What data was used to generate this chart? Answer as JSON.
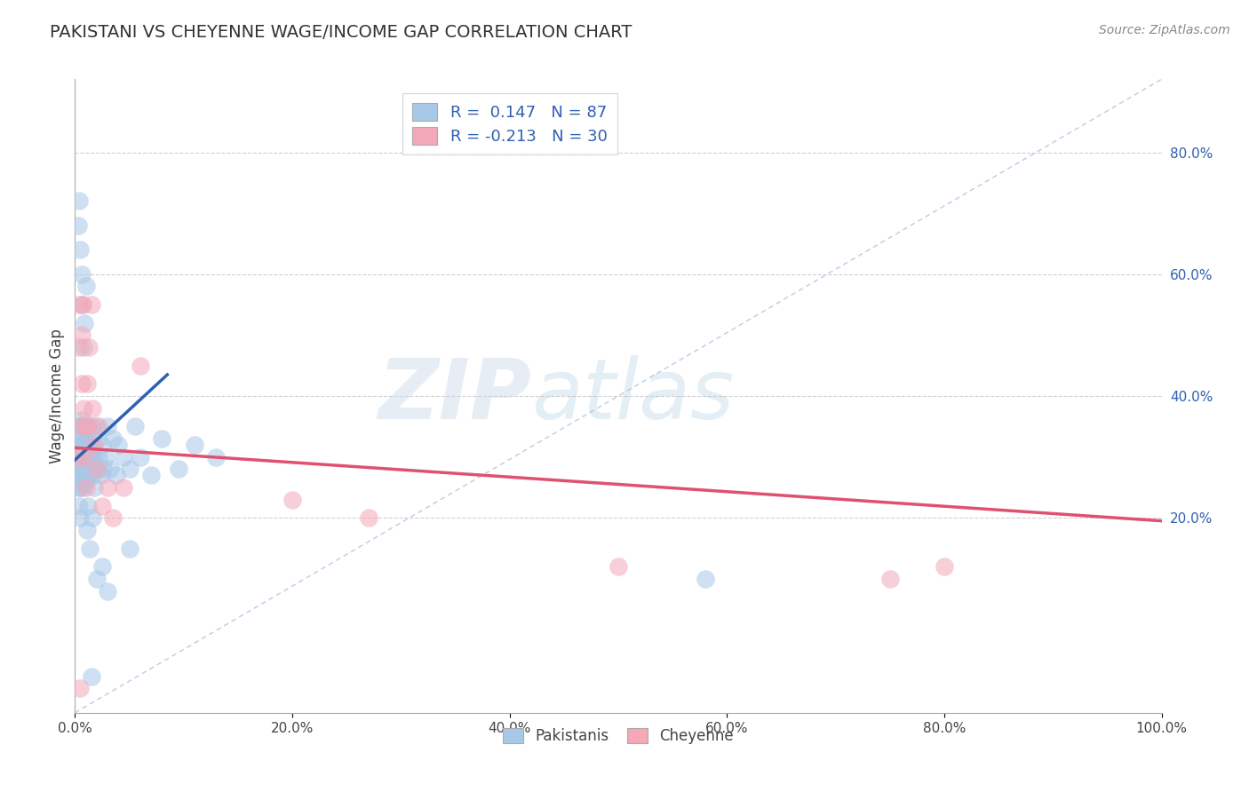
{
  "title": "PAKISTANI VS CHEYENNE WAGE/INCOME GAP CORRELATION CHART",
  "source_text": "Source: ZipAtlas.com",
  "ylabel": "Wage/Income Gap",
  "xlim": [
    0.0,
    1.0
  ],
  "ylim": [
    -0.12,
    0.92
  ],
  "x_ticks": [
    0.0,
    0.2,
    0.4,
    0.6,
    0.8,
    1.0
  ],
  "x_tick_labels": [
    "0.0%",
    "20.0%",
    "40.0%",
    "60.0%",
    "80.0%",
    "100.0%"
  ],
  "y_ticks_right": [
    0.2,
    0.4,
    0.6,
    0.8
  ],
  "y_tick_labels_right": [
    "20.0%",
    "40.0%",
    "60.0%",
    "80.0%"
  ],
  "background_color": "#ffffff",
  "grid_color": "#d0d0d0",
  "blue_fill": "#a8c8e8",
  "pink_fill": "#f4a8b8",
  "blue_edge": "#8ab0d0",
  "pink_edge": "#e890a0",
  "blue_line_color": "#3060b0",
  "pink_line_color": "#e05070",
  "diag_line_color": "#b0c8e0",
  "R_blue": 0.147,
  "N_blue": 87,
  "R_pink": -0.213,
  "N_pink": 30,
  "legend_R_color": "#3060b0",
  "watermark_zip": "ZIP",
  "watermark_atlas": "atlas",
  "blue_trend_x": [
    0.0,
    0.085
  ],
  "blue_trend_y": [
    0.295,
    0.435
  ],
  "pink_trend_x": [
    0.0,
    1.0
  ],
  "pink_trend_y": [
    0.315,
    0.195
  ],
  "pak_x": [
    0.002,
    0.003,
    0.003,
    0.004,
    0.004,
    0.004,
    0.004,
    0.005,
    0.005,
    0.005,
    0.005,
    0.005,
    0.006,
    0.006,
    0.006,
    0.006,
    0.007,
    0.007,
    0.007,
    0.007,
    0.008,
    0.008,
    0.008,
    0.008,
    0.009,
    0.009,
    0.009,
    0.01,
    0.01,
    0.01,
    0.01,
    0.01,
    0.01,
    0.011,
    0.011,
    0.012,
    0.012,
    0.013,
    0.013,
    0.014,
    0.015,
    0.015,
    0.015,
    0.016,
    0.017,
    0.018,
    0.019,
    0.02,
    0.021,
    0.022,
    0.024,
    0.025,
    0.026,
    0.028,
    0.03,
    0.032,
    0.035,
    0.038,
    0.04,
    0.045,
    0.05,
    0.055,
    0.06,
    0.07,
    0.08,
    0.095,
    0.11,
    0.13,
    0.003,
    0.004,
    0.005,
    0.006,
    0.007,
    0.008,
    0.009,
    0.01,
    0.011,
    0.012,
    0.014,
    0.016,
    0.018,
    0.02,
    0.025,
    0.03,
    0.05,
    0.58,
    0.015
  ],
  "pak_y": [
    0.3,
    0.28,
    0.32,
    0.25,
    0.35,
    0.27,
    0.22,
    0.3,
    0.25,
    0.35,
    0.28,
    0.2,
    0.32,
    0.26,
    0.3,
    0.36,
    0.28,
    0.33,
    0.25,
    0.3,
    0.32,
    0.27,
    0.35,
    0.3,
    0.28,
    0.33,
    0.3,
    0.31,
    0.35,
    0.28,
    0.32,
    0.26,
    0.29,
    0.3,
    0.35,
    0.28,
    0.33,
    0.27,
    0.32,
    0.3,
    0.28,
    0.35,
    0.3,
    0.32,
    0.27,
    0.3,
    0.35,
    0.28,
    0.33,
    0.3,
    0.27,
    0.32,
    0.28,
    0.3,
    0.35,
    0.28,
    0.33,
    0.27,
    0.32,
    0.3,
    0.28,
    0.35,
    0.3,
    0.27,
    0.33,
    0.28,
    0.32,
    0.3,
    0.68,
    0.72,
    0.64,
    0.6,
    0.55,
    0.48,
    0.52,
    0.58,
    0.18,
    0.22,
    0.15,
    0.2,
    0.25,
    0.1,
    0.12,
    0.08,
    0.15,
    0.1,
    -0.06
  ],
  "che_x": [
    0.003,
    0.004,
    0.004,
    0.005,
    0.006,
    0.006,
    0.007,
    0.008,
    0.009,
    0.01,
    0.01,
    0.011,
    0.012,
    0.013,
    0.015,
    0.016,
    0.018,
    0.02,
    0.022,
    0.025,
    0.03,
    0.035,
    0.045,
    0.06,
    0.2,
    0.27,
    0.5,
    0.75,
    0.8,
    0.005
  ],
  "che_y": [
    0.3,
    0.55,
    0.48,
    0.35,
    0.5,
    0.42,
    0.55,
    0.38,
    0.3,
    0.35,
    0.25,
    0.42,
    0.35,
    0.48,
    0.55,
    0.38,
    0.32,
    0.28,
    0.35,
    0.22,
    0.25,
    0.2,
    0.25,
    0.45,
    0.23,
    0.2,
    0.12,
    0.1,
    0.12,
    -0.08
  ]
}
